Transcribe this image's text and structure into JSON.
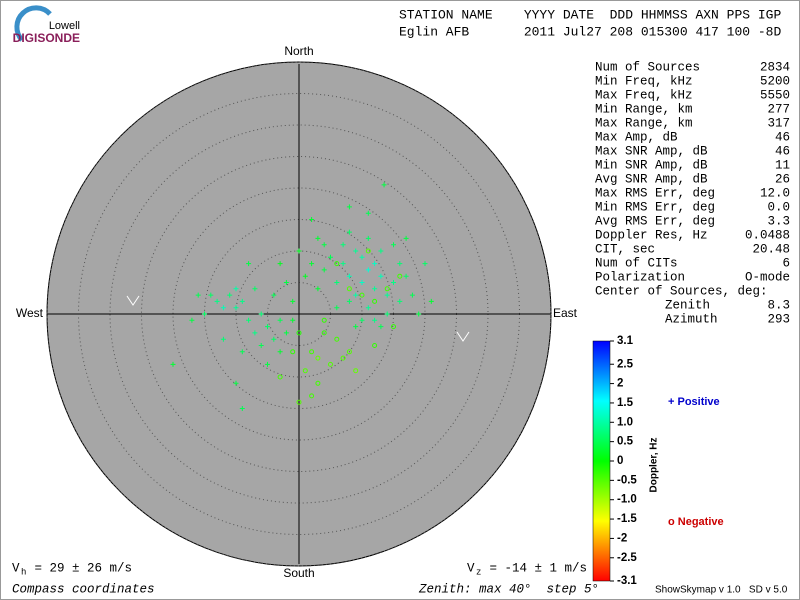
{
  "header": {
    "logo_top": "Lowell",
    "logo_bottom": "DIGISONDE",
    "station_labels": "STATION NAME    YYYY DATE  DDD HHMMSS AXN PPS IGP",
    "station_values": "Eglin AFB       2011 Jul27 208 015300 417 100 -8D"
  },
  "stats": [
    [
      "Num of Sources",
      "2834"
    ],
    [
      "Min Freq, kHz",
      "5200"
    ],
    [
      "Max Freq, kHz",
      "5550"
    ],
    [
      "Min Range, km",
      "277"
    ],
    [
      "Max Range, km",
      "317"
    ],
    [
      "Max Amp, dB",
      "46"
    ],
    [
      "Max SNR Amp, dB",
      "46"
    ],
    [
      "Min SNR Amp, dB",
      "11"
    ],
    [
      "Avg SNR Amp, dB",
      "26"
    ],
    [
      "Max RMS Err, deg",
      "12.0"
    ],
    [
      "Min RMS Err, deg",
      "0.0"
    ],
    [
      "Avg RMS Err, deg",
      "3.3"
    ],
    [
      "Doppler Res, Hz",
      "0.0488"
    ],
    [
      "CIT, sec",
      "20.48"
    ],
    [
      "Num of CITs",
      "6"
    ],
    [
      "Polarization",
      "O-mode"
    ]
  ],
  "center": {
    "title": "Center of Sources, deg:",
    "rows": [
      [
        "Zenith",
        "8.3"
      ],
      [
        "Azimuth",
        "293"
      ]
    ]
  },
  "footer": {
    "vh_symbol": "V",
    "vh_sub": "h",
    "vh_text": " = 29 ± 26 m/s",
    "vz_symbol": "V",
    "vz_sub": "z",
    "vz_text": " = -14 ± 1 m/s",
    "coords": "Compass coordinates",
    "zenith": "Zenith: max 40°  step 5°",
    "version": "ShowSkymap v 1.0   SD v 5.0"
  },
  "chart_data": {
    "type": "scatter",
    "compass": {
      "north": "North",
      "south": "South",
      "east": "East",
      "west": "West"
    },
    "xlim": [
      -40,
      40
    ],
    "ylim": [
      -40,
      40
    ],
    "rticks": [
      5,
      10,
      15,
      20,
      25,
      30,
      35,
      40
    ],
    "colorbar": {
      "label": "Doppler, Hz",
      "lim": [
        -3.1,
        3.1
      ],
      "ticks": [
        3.1,
        2.5,
        2,
        1.5,
        {
          "value": 1,
          "label": "1.0"
        },
        0.5,
        0,
        -0.5,
        {
          "value": -1,
          "label": "-1.0"
        },
        -1.5,
        -2,
        -2.5,
        -3.1
      ]
    },
    "legend": [
      {
        "name": "+ Positive",
        "color": "#0000cc"
      },
      {
        "name": "o Negative",
        "color": "#cc0000"
      }
    ],
    "points": [
      [
        8,
        6,
        1.1
      ],
      [
        10,
        5,
        1.2
      ],
      [
        12,
        4,
        0.9
      ],
      [
        9,
        3,
        1.0
      ],
      [
        11,
        7,
        1.3
      ],
      [
        7,
        8,
        0.8
      ],
      [
        13,
        6,
        1.1
      ],
      [
        14,
        3,
        0.9
      ],
      [
        6,
        5,
        0.7
      ],
      [
        10,
        9,
        1.0
      ],
      [
        12,
        8,
        1.2
      ],
      [
        8,
        2,
        0.6
      ],
      [
        15,
        5,
        0.8
      ],
      [
        16,
        2,
        0.7
      ],
      [
        11,
        1,
        0.9
      ],
      [
        9,
        10,
        0.9
      ],
      [
        5,
        9,
        0.5
      ],
      [
        4,
        7,
        0.4
      ],
      [
        13,
        10,
        0.8
      ],
      [
        17,
        6,
        0.6
      ],
      [
        14,
        0,
        0.7
      ],
      [
        12,
        -1,
        0.8
      ],
      [
        10,
        -1,
        0.6
      ],
      [
        7,
        11,
        0.7
      ],
      [
        3,
        4,
        0.3
      ],
      [
        2,
        8,
        0.3
      ],
      [
        11,
        12,
        0.6
      ],
      [
        18,
        3,
        0.5
      ],
      [
        16,
        8,
        0.7
      ],
      [
        6,
        1,
        0.5
      ],
      [
        8,
        13,
        0.6
      ],
      [
        4,
        11,
        0.4
      ],
      [
        15,
        11,
        0.5
      ],
      [
        19,
        0,
        0.4
      ],
      [
        13,
        -2,
        0.5
      ],
      [
        9,
        -2,
        0.4
      ],
      [
        20,
        8,
        0.6
      ],
      [
        1,
        6,
        0.2
      ],
      [
        0,
        10,
        0.2
      ],
      [
        3,
        12,
        0.3
      ],
      [
        13.5,
        20.5,
        0.4
      ],
      [
        2,
        15,
        0.3
      ],
      [
        8,
        17,
        0.4
      ],
      [
        11,
        16,
        0.5
      ],
      [
        17,
        12,
        0.4
      ],
      [
        21,
        2,
        0.3
      ],
      [
        -5,
        -2,
        0.6
      ],
      [
        -3,
        -1,
        0.5
      ],
      [
        -6,
        0,
        0.7
      ],
      [
        -4,
        -4,
        0.6
      ],
      [
        -7,
        -3,
        0.8
      ],
      [
        -2,
        -3,
        0.4
      ],
      [
        -8,
        -1,
        0.7
      ],
      [
        -1,
        -1,
        0.3
      ],
      [
        -9,
        2,
        0.8
      ],
      [
        -10,
        1,
        0.9
      ],
      [
        -11,
        3,
        0.7
      ],
      [
        -13,
        2,
        0.8
      ],
      [
        -14,
        3,
        0.6
      ],
      [
        -16,
        3,
        0.5
      ],
      [
        -15,
        0,
        0.6
      ],
      [
        -12,
        -4,
        0.7
      ],
      [
        -17,
        -1,
        0.4
      ],
      [
        -6,
        -5,
        0.5
      ],
      [
        -3,
        -6,
        0.3
      ],
      [
        -5,
        -8,
        0.4
      ],
      [
        -9,
        -6,
        0.5
      ],
      [
        -20,
        -8,
        0.3
      ],
      [
        -10,
        -11,
        0.4
      ],
      [
        -9,
        -15,
        0.5
      ],
      [
        -2,
        5,
        0.4
      ],
      [
        -4,
        3,
        0.5
      ],
      [
        -7,
        4,
        0.6
      ],
      [
        -1,
        2,
        0.3
      ],
      [
        -3,
        8,
        0.2
      ],
      [
        -8,
        8,
        0.4
      ],
      [
        -10,
        4,
        1.0
      ],
      [
        -12,
        1,
        1.1
      ],
      [
        2,
        -6,
        -0.4
      ],
      [
        4,
        -3,
        -0.3
      ],
      [
        1,
        -9,
        -0.5
      ],
      [
        3,
        -7,
        -0.6
      ],
      [
        6,
        -4,
        -0.4
      ],
      [
        5,
        -8,
        -0.5
      ],
      [
        -1,
        -6,
        -0.3
      ],
      [
        3,
        -11,
        -0.4
      ],
      [
        8,
        -6,
        -0.5
      ],
      [
        9,
        -9,
        -0.6
      ],
      [
        2,
        -13,
        -0.4
      ],
      [
        12,
        -5,
        -0.3
      ],
      [
        7,
        -7,
        -0.5
      ],
      [
        4,
        -1,
        -0.3
      ],
      [
        10,
        3,
        -0.4
      ],
      [
        12,
        2,
        -0.3
      ],
      [
        14,
        4,
        -0.4
      ],
      [
        8,
        4,
        -0.5
      ],
      [
        16,
        6,
        -0.4
      ],
      [
        6,
        8,
        -0.3
      ],
      [
        11,
        10,
        -0.5
      ],
      [
        0,
        -3,
        -0.2
      ],
      [
        15,
        -2,
        -0.3
      ],
      [
        -3,
        -10,
        -0.4
      ],
      [
        0,
        -14,
        -0.5
      ]
    ]
  }
}
